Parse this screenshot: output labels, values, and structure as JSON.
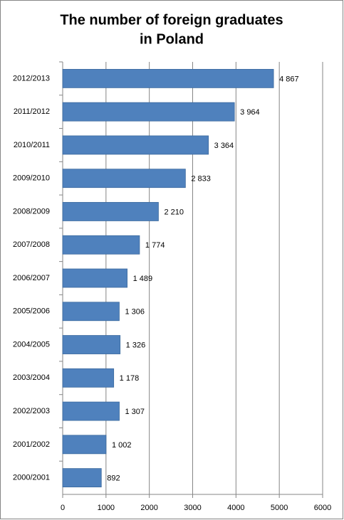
{
  "chart_data": {
    "type": "barh",
    "title": [
      "The number of foreign graduates",
      "in Poland"
    ],
    "categories": [
      "2012/2013",
      "2011/2012",
      "2010/2011",
      "2009/2010",
      "2008/2009",
      "2007/2008",
      "2006/2007",
      "2005/2006",
      "2004/2005",
      "2003/2004",
      "2002/2003",
      "2001/2002",
      "2000/2001"
    ],
    "values": [
      4867,
      3964,
      3364,
      2833,
      2210,
      1774,
      1489,
      1306,
      1326,
      1178,
      1307,
      1002,
      892
    ],
    "value_labels": [
      "4 867",
      "3 964",
      "3 364",
      "2 833",
      "2 210",
      "1 774",
      "1 489",
      "1 306",
      "1 326",
      "1 178",
      "1 307",
      "1 002",
      "892"
    ],
    "color": "#4f81bd",
    "xlim": [
      0,
      6000
    ],
    "xticks": [
      0,
      1000,
      2000,
      3000,
      4000,
      5000,
      6000
    ],
    "grid": true
  }
}
